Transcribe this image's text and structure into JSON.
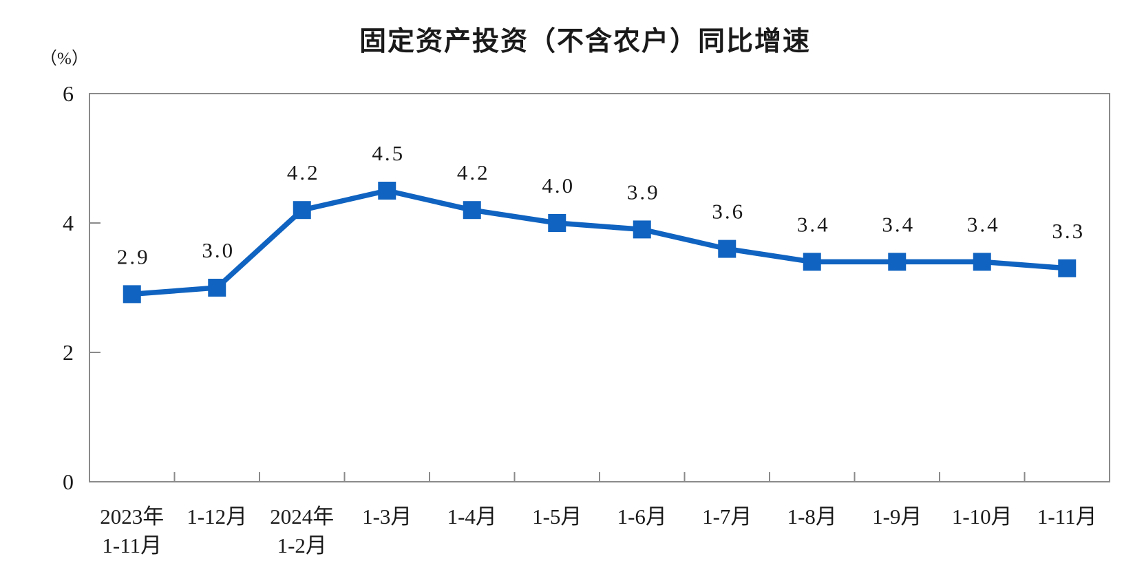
{
  "chart_data": {
    "type": "line",
    "title": "固定资产投资（不含农户）同比增速",
    "unit_label": "（%）",
    "categories": [
      {
        "line1": "2023年",
        "line2": "1-11月"
      },
      {
        "line1": "1-12月",
        "line2": ""
      },
      {
        "line1": "2024年",
        "line2": "1-2月"
      },
      {
        "line1": "1-3月",
        "line2": ""
      },
      {
        "line1": "1-4月",
        "line2": ""
      },
      {
        "line1": "1-5月",
        "line2": ""
      },
      {
        "line1": "1-6月",
        "line2": ""
      },
      {
        "line1": "1-7月",
        "line2": ""
      },
      {
        "line1": "1-8月",
        "line2": ""
      },
      {
        "line1": "1-9月",
        "line2": ""
      },
      {
        "line1": "1-10月",
        "line2": ""
      },
      {
        "line1": "1-11月",
        "line2": ""
      }
    ],
    "series": [
      {
        "name": "固定资产投资（不含农户）同比增速",
        "values": [
          2.9,
          3.0,
          4.2,
          4.5,
          4.2,
          4.0,
          3.9,
          3.6,
          3.4,
          3.4,
          3.4,
          3.3
        ],
        "labels": [
          "2.9",
          "3.0",
          "4.2",
          "4.5",
          "4.2",
          "4.0",
          "3.9",
          "3.6",
          "3.4",
          "3.4",
          "3.4",
          "3.3"
        ]
      }
    ],
    "ylim": [
      0,
      6
    ],
    "yticks": [
      0,
      2,
      4,
      6
    ],
    "grid": false,
    "legend_position": "none",
    "colors": {
      "line": "#1063C0",
      "marker": "#1063C0",
      "text": "#1a1a1a",
      "axis": "#8a8a8a"
    }
  }
}
